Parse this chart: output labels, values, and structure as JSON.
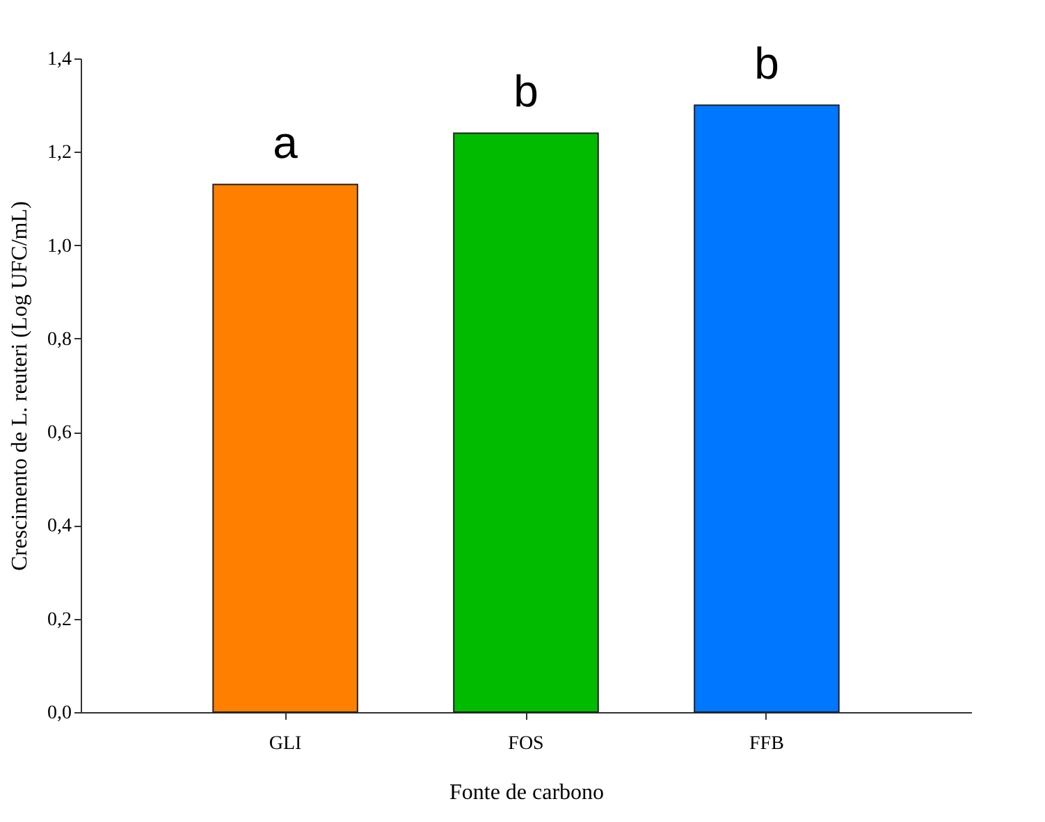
{
  "chart_data": {
    "type": "bar",
    "xlabel": "Fonte de carbono",
    "ylabel": "Crescimento de L. reuteri (Log UFC/mL)",
    "categories": [
      "GLI",
      "FOS",
      "FFB"
    ],
    "values": [
      1.13,
      1.24,
      1.3
    ],
    "colors": [
      "#ff7f00",
      "#00bb00",
      "#0077ff"
    ],
    "ylim": [
      0,
      1.4
    ],
    "yticks": [
      {
        "value": 0,
        "label": "0,0"
      },
      {
        "value": 0.2,
        "label": "0,2"
      },
      {
        "value": 0.4,
        "label": "0,4"
      },
      {
        "value": 0.6,
        "label": "0,6"
      },
      {
        "value": 0.8,
        "label": "0,8"
      },
      {
        "value": 1.0,
        "label": "1,0"
      },
      {
        "value": 1.2,
        "label": "1,2"
      },
      {
        "value": 1.4,
        "label": "1,4"
      }
    ],
    "grid": false,
    "annotations": [
      "a",
      "b",
      "b"
    ]
  }
}
